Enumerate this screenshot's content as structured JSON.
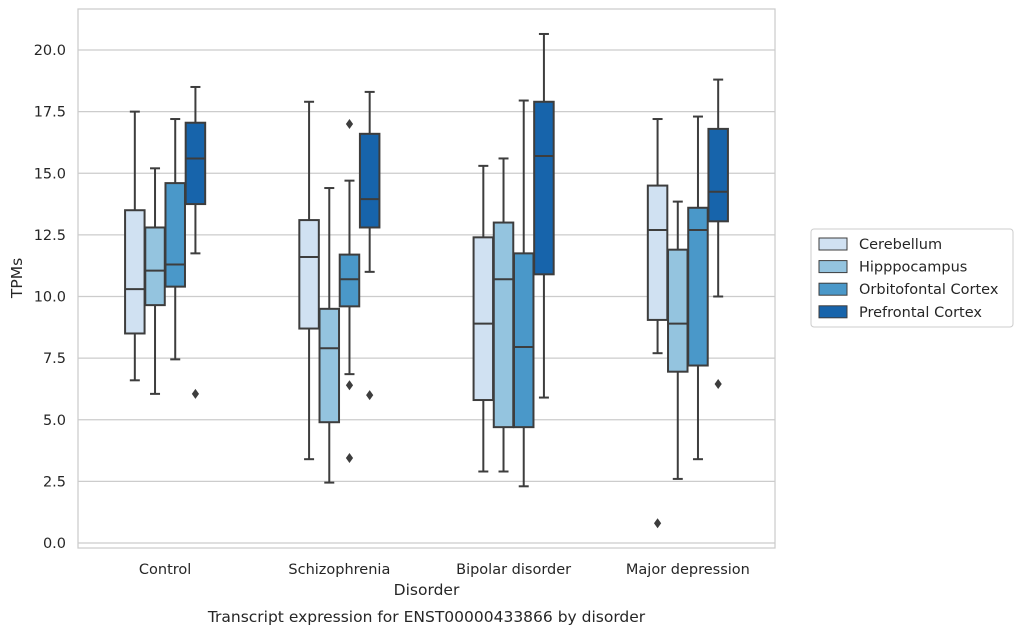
{
  "chart_data": {
    "type": "box",
    "caption": "Transcript expression for ENST00000433866 by disorder",
    "xlabel": "Disorder",
    "ylabel": "TPMs",
    "ylim": [
      -0.2,
      21.8
    ],
    "yticks": [
      0.0,
      2.5,
      5.0,
      7.5,
      10.0,
      12.5,
      15.0,
      17.5,
      20.0
    ],
    "ytick_labels": [
      "0.0",
      "2.5",
      "5.0",
      "7.5",
      "10.0",
      "12.5",
      "15.0",
      "17.5",
      "20.0"
    ],
    "grid": "horizontal",
    "legend_position": "right",
    "categories": [
      "Control",
      "Schizophrenia",
      "Bipolar disorder",
      "Major depression"
    ],
    "series": [
      {
        "name": "Cerebellum",
        "color": "#d0e1f2",
        "boxes": [
          {
            "whisker_low": 6.6,
            "q1": 8.5,
            "median": 10.3,
            "q3": 13.5,
            "whisker_high": 17.5,
            "outliers": []
          },
          {
            "whisker_low": 3.4,
            "q1": 8.7,
            "median": 11.6,
            "q3": 13.1,
            "whisker_high": 17.9,
            "outliers": []
          },
          {
            "whisker_low": 2.9,
            "q1": 5.8,
            "median": 8.9,
            "q3": 12.4,
            "whisker_high": 15.3,
            "outliers": []
          },
          {
            "whisker_low": 7.7,
            "q1": 9.05,
            "median": 12.7,
            "q3": 14.5,
            "whisker_high": 17.2,
            "outliers": [
              0.8
            ]
          }
        ]
      },
      {
        "name": "Hipppocampus",
        "color": "#94c4df",
        "boxes": [
          {
            "whisker_low": 6.05,
            "q1": 9.65,
            "median": 11.05,
            "q3": 12.8,
            "whisker_high": 15.2,
            "outliers": []
          },
          {
            "whisker_low": 2.45,
            "q1": 4.9,
            "median": 7.9,
            "q3": 9.5,
            "whisker_high": 14.4,
            "outliers": []
          },
          {
            "whisker_low": 2.9,
            "q1": 4.7,
            "median": 10.7,
            "q3": 13.0,
            "whisker_high": 15.6,
            "outliers": []
          },
          {
            "whisker_low": 2.6,
            "q1": 6.95,
            "median": 8.9,
            "q3": 11.9,
            "whisker_high": 13.85,
            "outliers": []
          }
        ]
      },
      {
        "name": "Orbitofontal Cortex",
        "color": "#4a98c9",
        "boxes": [
          {
            "whisker_low": 7.45,
            "q1": 10.4,
            "median": 11.3,
            "q3": 14.6,
            "whisker_high": 17.2,
            "outliers": []
          },
          {
            "whisker_low": 6.85,
            "q1": 9.6,
            "median": 10.7,
            "q3": 11.7,
            "whisker_high": 14.7,
            "outliers": [
              17.0,
              6.4,
              3.45
            ]
          },
          {
            "whisker_low": 2.3,
            "q1": 4.7,
            "median": 7.95,
            "q3": 11.75,
            "whisker_high": 17.95,
            "outliers": []
          },
          {
            "whisker_low": 3.4,
            "q1": 7.2,
            "median": 12.7,
            "q3": 13.6,
            "whisker_high": 17.3,
            "outliers": []
          }
        ]
      },
      {
        "name": "Prefrontal Cortex",
        "color": "#1764ab",
        "boxes": [
          {
            "whisker_low": 11.75,
            "q1": 13.75,
            "median": 15.6,
            "q3": 17.05,
            "whisker_high": 18.5,
            "outliers": [
              6.05
            ]
          },
          {
            "whisker_low": 11.0,
            "q1": 12.8,
            "median": 13.95,
            "q3": 16.6,
            "whisker_high": 18.3,
            "outliers": [
              6.0
            ]
          },
          {
            "whisker_low": 5.9,
            "q1": 10.9,
            "median": 15.7,
            "q3": 17.9,
            "whisker_high": 20.65,
            "outliers": []
          },
          {
            "whisker_low": 10.0,
            "q1": 13.05,
            "median": 14.25,
            "q3": 16.8,
            "whisker_high": 18.8,
            "outliers": [
              6.45
            ]
          }
        ]
      }
    ]
  }
}
